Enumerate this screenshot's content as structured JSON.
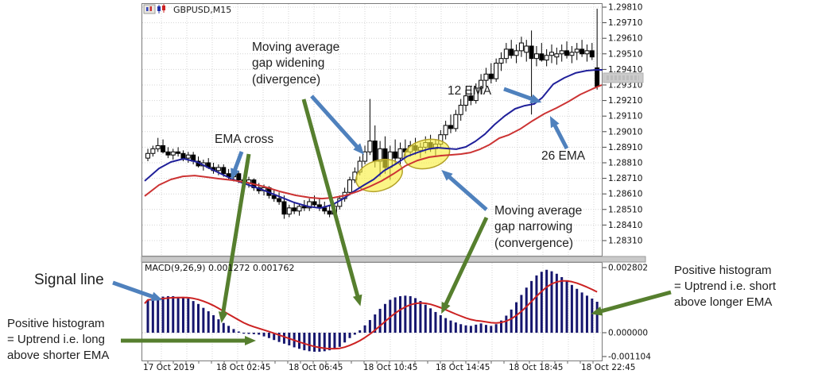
{
  "window": {
    "title": "GBPUSD,M15",
    "icons": [
      "chart-properties-icon",
      "candlestick-chart-icon"
    ]
  },
  "annotations": {
    "divergence": "Moving average\ngap widening\n(divergence)",
    "ema_cross": "EMA cross",
    "ema12": "12 EMA",
    "ema26": "26 EMA",
    "convergence": "Moving average\ngap narrowing\n(convergence)",
    "signal_line": "Signal line",
    "positive_left": "Positive histogram\n= Uptrend i.e. long\nabove shorter EMA",
    "positive_right": "Positive histogram\n= Uptrend i.e. short\nabove longer EMA"
  },
  "macd_panel": {
    "label": "MACD(9,26,9) 0.001272 0.001762",
    "scale_labels": [
      "0.002802",
      "0.000000",
      "-0.001104"
    ]
  },
  "date_axis": [
    "17 Oct 2019",
    "18 Oct 02:45",
    "18 Oct 06:45",
    "18 Oct 10:45",
    "18 Oct 14:45",
    "18 Oct 18:45",
    "18 Oct 22:45"
  ],
  "colors": {
    "ema_fast_blue": "#20209a",
    "ema_slow_red": "#cc3333",
    "macd_bar_navy": "#16166e",
    "macd_signal_red": "#cc2222",
    "arrow_blue": "#4f81bd",
    "arrow_green": "#567f2e",
    "highlight_yellow": "#f8ef3c",
    "grid_gray": "#d4d4d4",
    "panel_border": "#7a7a7a"
  },
  "chart_data": {
    "type": "candlestick",
    "symbol_timeframe": "GBPUSD,M15",
    "price_axis": {
      "labels": [
        "1.29810",
        "1.29710",
        "1.29610",
        "1.29510",
        "1.29410",
        "1.29310",
        "1.29210",
        "1.29110",
        "1.29010",
        "1.28910",
        "1.28810",
        "1.28710",
        "1.28610",
        "1.28510",
        "1.28410",
        "1.28310"
      ],
      "max": 1.2981,
      "min": 1.2831,
      "tick_step": 0.001,
      "current_price_marker": true
    },
    "x_axis_labels": [
      "17 Oct 2019",
      "18 Oct 02:45",
      "18 Oct 06:45",
      "18 Oct 10:45",
      "18 Oct 14:45",
      "18 Oct 18:45",
      "18 Oct 22:45"
    ],
    "grid": true,
    "candle_unit_note": "price = 1.28 + v*0.0001, arrays are [open,high,low,close]",
    "candles": [
      [
        84,
        90,
        82,
        87
      ],
      [
        87,
        92,
        85,
        90
      ],
      [
        90,
        97,
        88,
        92
      ],
      [
        92,
        96,
        87,
        88
      ],
      [
        88,
        91,
        84,
        86
      ],
      [
        86,
        90,
        83,
        88
      ],
      [
        88,
        91,
        85,
        87
      ],
      [
        87,
        89,
        82,
        84
      ],
      [
        84,
        88,
        81,
        86
      ],
      [
        86,
        88,
        80,
        82
      ],
      [
        82,
        85,
        78,
        79
      ],
      [
        79,
        83,
        76,
        81
      ],
      [
        81,
        84,
        77,
        78
      ],
      [
        78,
        81,
        74,
        76
      ],
      [
        76,
        80,
        73,
        78
      ],
      [
        78,
        80,
        72,
        74
      ],
      [
        74,
        77,
        70,
        72
      ],
      [
        72,
        76,
        69,
        74
      ],
      [
        74,
        76,
        68,
        70
      ],
      [
        70,
        73,
        66,
        68
      ],
      [
        68,
        72,
        65,
        70
      ],
      [
        70,
        71,
        63,
        65
      ],
      [
        65,
        68,
        61,
        63
      ],
      [
        63,
        67,
        60,
        65
      ],
      [
        65,
        66,
        58,
        60
      ],
      [
        60,
        64,
        56,
        58
      ],
      [
        58,
        62,
        54,
        56
      ],
      [
        56,
        60,
        45,
        48
      ],
      [
        48,
        54,
        46,
        52
      ],
      [
        52,
        56,
        48,
        50
      ],
      [
        50,
        55,
        47,
        53
      ],
      [
        53,
        57,
        50,
        52
      ],
      [
        52,
        58,
        50,
        56
      ],
      [
        56,
        60,
        52,
        54
      ],
      [
        54,
        58,
        50,
        52
      ],
      [
        52,
        56,
        48,
        50
      ],
      [
        50,
        54,
        46,
        48
      ],
      [
        48,
        55,
        46,
        53
      ],
      [
        53,
        60,
        51,
        58
      ],
      [
        58,
        65,
        56,
        62
      ],
      [
        62,
        72,
        60,
        70
      ],
      [
        70,
        78,
        68,
        75
      ],
      [
        75,
        85,
        73,
        82
      ],
      [
        82,
        92,
        80,
        88
      ],
      [
        88,
        122,
        86,
        95
      ],
      [
        95,
        105,
        78,
        82
      ],
      [
        82,
        95,
        72,
        90
      ],
      [
        90,
        98,
        74,
        78
      ],
      [
        78,
        92,
        70,
        88
      ],
      [
        88,
        96,
        80,
        84
      ],
      [
        84,
        94,
        80,
        90
      ],
      [
        90,
        96,
        84,
        88
      ],
      [
        88,
        95,
        85,
        92
      ],
      [
        92,
        97,
        86,
        89
      ],
      [
        89,
        94,
        84,
        91
      ],
      [
        91,
        98,
        87,
        94
      ],
      [
        94,
        99,
        88,
        90
      ],
      [
        90,
        96,
        85,
        93
      ],
      [
        93,
        102,
        91,
        99
      ],
      [
        99,
        108,
        96,
        105
      ],
      [
        105,
        112,
        100,
        103
      ],
      [
        103,
        115,
        101,
        112
      ],
      [
        112,
        122,
        108,
        118
      ],
      [
        118,
        128,
        114,
        124
      ],
      [
        124,
        130,
        118,
        121
      ],
      [
        121,
        132,
        119,
        129
      ],
      [
        129,
        138,
        125,
        134
      ],
      [
        134,
        142,
        130,
        138
      ],
      [
        138,
        145,
        132,
        135
      ],
      [
        135,
        148,
        133,
        145
      ],
      [
        145,
        152,
        140,
        148
      ],
      [
        148,
        158,
        145,
        154
      ],
      [
        154,
        160,
        148,
        150
      ],
      [
        150,
        157,
        145,
        153
      ],
      [
        153,
        162,
        149,
        158
      ],
      [
        152,
        160,
        146,
        156
      ],
      [
        156,
        166,
        112,
        148
      ],
      [
        148,
        156,
        143,
        151
      ],
      [
        151,
        158,
        146,
        147
      ],
      [
        147,
        154,
        143,
        150
      ],
      [
        150,
        157,
        145,
        152
      ],
      [
        149,
        155,
        144,
        151
      ],
      [
        151,
        157,
        146,
        153
      ],
      [
        153,
        159,
        148,
        150
      ],
      [
        150,
        156,
        145,
        152
      ],
      [
        152,
        158,
        147,
        154
      ],
      [
        154,
        160,
        149,
        151
      ],
      [
        151,
        157,
        146,
        153
      ],
      [
        153,
        158,
        147,
        149
      ],
      [
        142,
        180,
        128,
        130
      ]
    ],
    "ema12_points": [
      [
        182,
        1.28693
      ],
      [
        200,
        1.28774
      ],
      [
        215,
        1.28815
      ],
      [
        231,
        1.28836
      ],
      [
        248,
        1.28815
      ],
      [
        262,
        1.28779
      ],
      [
        278,
        1.28739
      ],
      [
        293,
        1.28703
      ],
      [
        310,
        1.28672
      ],
      [
        330,
        1.28637
      ],
      [
        350,
        1.28596
      ],
      [
        370,
        1.28555
      ],
      [
        388,
        1.28529
      ],
      [
        403,
        1.28519
      ],
      [
        418,
        1.2854
      ],
      [
        432,
        1.2858
      ],
      [
        445,
        1.28626
      ],
      [
        458,
        1.28667
      ],
      [
        470,
        1.28703
      ],
      [
        483,
        1.28759
      ],
      [
        497,
        1.288
      ],
      [
        512,
        1.28851
      ],
      [
        525,
        1.28876
      ],
      [
        538,
        1.28897
      ],
      [
        550,
        1.28907
      ],
      [
        562,
        1.28902
      ],
      [
        574,
        1.28897
      ],
      [
        586,
        1.28912
      ],
      [
        598,
        1.28948
      ],
      [
        610,
        1.28994
      ],
      [
        622,
        1.29055
      ],
      [
        635,
        1.29111
      ],
      [
        648,
        1.29157
      ],
      [
        660,
        1.29177
      ],
      [
        672,
        1.29188
      ],
      [
        682,
        1.29228
      ],
      [
        696,
        1.29315
      ],
      [
        710,
        1.29356
      ],
      [
        724,
        1.29387
      ],
      [
        738,
        1.29402
      ],
      [
        750,
        1.29407
      ],
      [
        758,
        1.29407
      ]
    ],
    "ema26_points": [
      [
        182,
        1.28596
      ],
      [
        200,
        1.28667
      ],
      [
        215,
        1.28703
      ],
      [
        230,
        1.28723
      ],
      [
        245,
        1.28728
      ],
      [
        260,
        1.28718
      ],
      [
        275,
        1.28708
      ],
      [
        293,
        1.28698
      ],
      [
        312,
        1.28682
      ],
      [
        332,
        1.28657
      ],
      [
        352,
        1.28626
      ],
      [
        372,
        1.28601
      ],
      [
        390,
        1.28586
      ],
      [
        405,
        1.2858
      ],
      [
        420,
        1.28586
      ],
      [
        435,
        1.28601
      ],
      [
        450,
        1.28626
      ],
      [
        465,
        1.28657
      ],
      [
        480,
        1.28693
      ],
      [
        495,
        1.28739
      ],
      [
        510,
        1.2879
      ],
      [
        525,
        1.28825
      ],
      [
        540,
        1.28846
      ],
      [
        555,
        1.28856
      ],
      [
        568,
        1.28861
      ],
      [
        580,
        1.28866
      ],
      [
        592,
        1.28876
      ],
      [
        604,
        1.28897
      ],
      [
        616,
        1.28927
      ],
      [
        628,
        1.28968
      ],
      [
        640,
        1.28989
      ],
      [
        655,
        1.29029
      ],
      [
        670,
        1.2908
      ],
      [
        685,
        1.29126
      ],
      [
        700,
        1.29162
      ],
      [
        715,
        1.29203
      ],
      [
        730,
        1.29249
      ],
      [
        745,
        1.29284
      ],
      [
        757,
        1.2931
      ]
    ],
    "indicator": {
      "name": "MACD(9,26,9)",
      "displayed_values": [
        0.001272,
        0.001762
      ],
      "scale": {
        "max": 0.002802,
        "zero": 0.0,
        "min": -0.001104
      },
      "signal_period": 9,
      "histogram_unit_note": "values are x0.001",
      "histogram_milli": [
        1.35,
        1.42,
        1.45,
        1.48,
        1.5,
        1.5,
        1.47,
        1.45,
        1.4,
        1.3,
        1.18,
        1.02,
        0.88,
        0.72,
        0.55,
        0.4,
        0.28,
        0.15,
        0.05,
        -0.04,
        -0.05,
        -0.06,
        -0.08,
        -0.15,
        -0.22,
        -0.3,
        -0.38,
        -0.45,
        -0.52,
        -0.6,
        -0.66,
        -0.72,
        -0.76,
        -0.78,
        -0.78,
        -0.76,
        -0.72,
        -0.66,
        -0.58,
        -0.4,
        -0.22,
        -0.08,
        0.1,
        0.3,
        0.52,
        0.75,
        0.98,
        1.18,
        1.35,
        1.45,
        1.5,
        1.52,
        1.5,
        1.42,
        1.3,
        1.15,
        1.0,
        0.85,
        0.72,
        0.6,
        0.5,
        0.42,
        0.35,
        0.3,
        0.28,
        0.33,
        0.38,
        0.32,
        0.28,
        0.35,
        0.5,
        0.7,
        0.95,
        1.25,
        1.55,
        1.85,
        2.12,
        2.35,
        2.5,
        2.58,
        2.52,
        2.42,
        2.28,
        2.12,
        1.96,
        1.8,
        1.65,
        1.52,
        1.4,
        1.27
      ]
    }
  }
}
